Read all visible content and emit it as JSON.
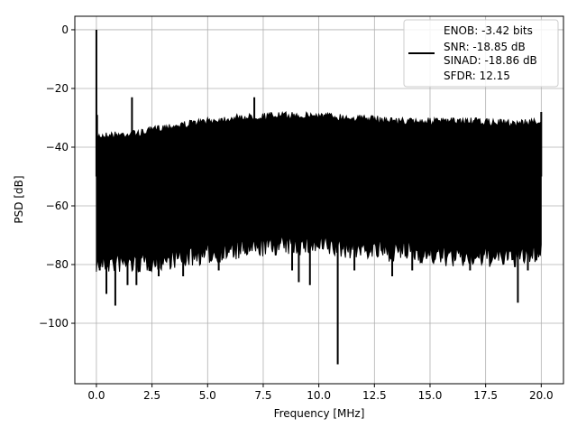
{
  "chart_data": {
    "type": "line",
    "title": "",
    "xlabel": "Frequency [MHz]",
    "ylabel": "PSD [dB]",
    "xlim": [
      -0.97,
      21.0
    ],
    "ylim": [
      -120.6,
      4.6
    ],
    "xticks": [
      0.0,
      2.5,
      5.0,
      7.5,
      10.0,
      12.5,
      15.0,
      17.5,
      20.0
    ],
    "xtick_labels": [
      "0.0",
      "2.5",
      "5.0",
      "7.5",
      "10.0",
      "12.5",
      "15.0",
      "17.5",
      "20.0"
    ],
    "yticks": [
      0,
      -20,
      -40,
      -60,
      -80,
      -100
    ],
    "ytick_labels": [
      "0",
      "−20",
      "−40",
      "−60",
      "−80",
      "−100"
    ],
    "grid": true,
    "line_color": "#000000",
    "legend_placement": "upper right",
    "legend_entries": [
      "ENOB: -3.42 bits",
      "SNR: -18.85 dB",
      "SINAD: -18.86 dB",
      "SFDR: 12.15"
    ],
    "envelope": {
      "x": [
        0,
        1,
        2,
        3,
        4,
        5,
        6,
        7,
        8,
        9,
        10,
        11,
        12,
        13,
        14,
        15,
        16,
        17,
        18,
        19,
        20
      ],
      "upper": [
        -35,
        -34.5,
        -34,
        -32,
        -31,
        -30,
        -29,
        -28.5,
        -28,
        -28,
        -28,
        -28.5,
        -29,
        -29.5,
        -30,
        -30,
        -30,
        -30,
        -30.5,
        -30.5,
        -30
      ],
      "lower": [
        -76,
        -76,
        -76,
        -75,
        -74,
        -73,
        -72,
        -71,
        -70,
        -70,
        -70,
        -71,
        -71,
        -72,
        -72,
        -73,
        -74,
        -74,
        -74,
        -74,
        -72
      ]
    },
    "peaks": [
      {
        "x": 0.0,
        "y": 0
      },
      {
        "x": 0.03,
        "y": -29
      },
      {
        "x": 1.6,
        "y": -23
      },
      {
        "x": 7.1,
        "y": -23
      },
      {
        "x": 20.0,
        "y": -28
      }
    ],
    "dips": [
      {
        "x": 0.15,
        "y": -82
      },
      {
        "x": 0.45,
        "y": -90
      },
      {
        "x": 0.85,
        "y": -94
      },
      {
        "x": 1.4,
        "y": -87
      },
      {
        "x": 1.8,
        "y": -87
      },
      {
        "x": 2.8,
        "y": -84
      },
      {
        "x": 3.9,
        "y": -84
      },
      {
        "x": 5.5,
        "y": -82
      },
      {
        "x": 8.8,
        "y": -82
      },
      {
        "x": 9.1,
        "y": -86
      },
      {
        "x": 9.6,
        "y": -87
      },
      {
        "x": 10.85,
        "y": -114
      },
      {
        "x": 11.6,
        "y": -82
      },
      {
        "x": 13.3,
        "y": -84
      },
      {
        "x": 14.2,
        "y": -82
      },
      {
        "x": 16.8,
        "y": -82
      },
      {
        "x": 18.95,
        "y": -93
      },
      {
        "x": 19.4,
        "y": -82
      }
    ]
  }
}
